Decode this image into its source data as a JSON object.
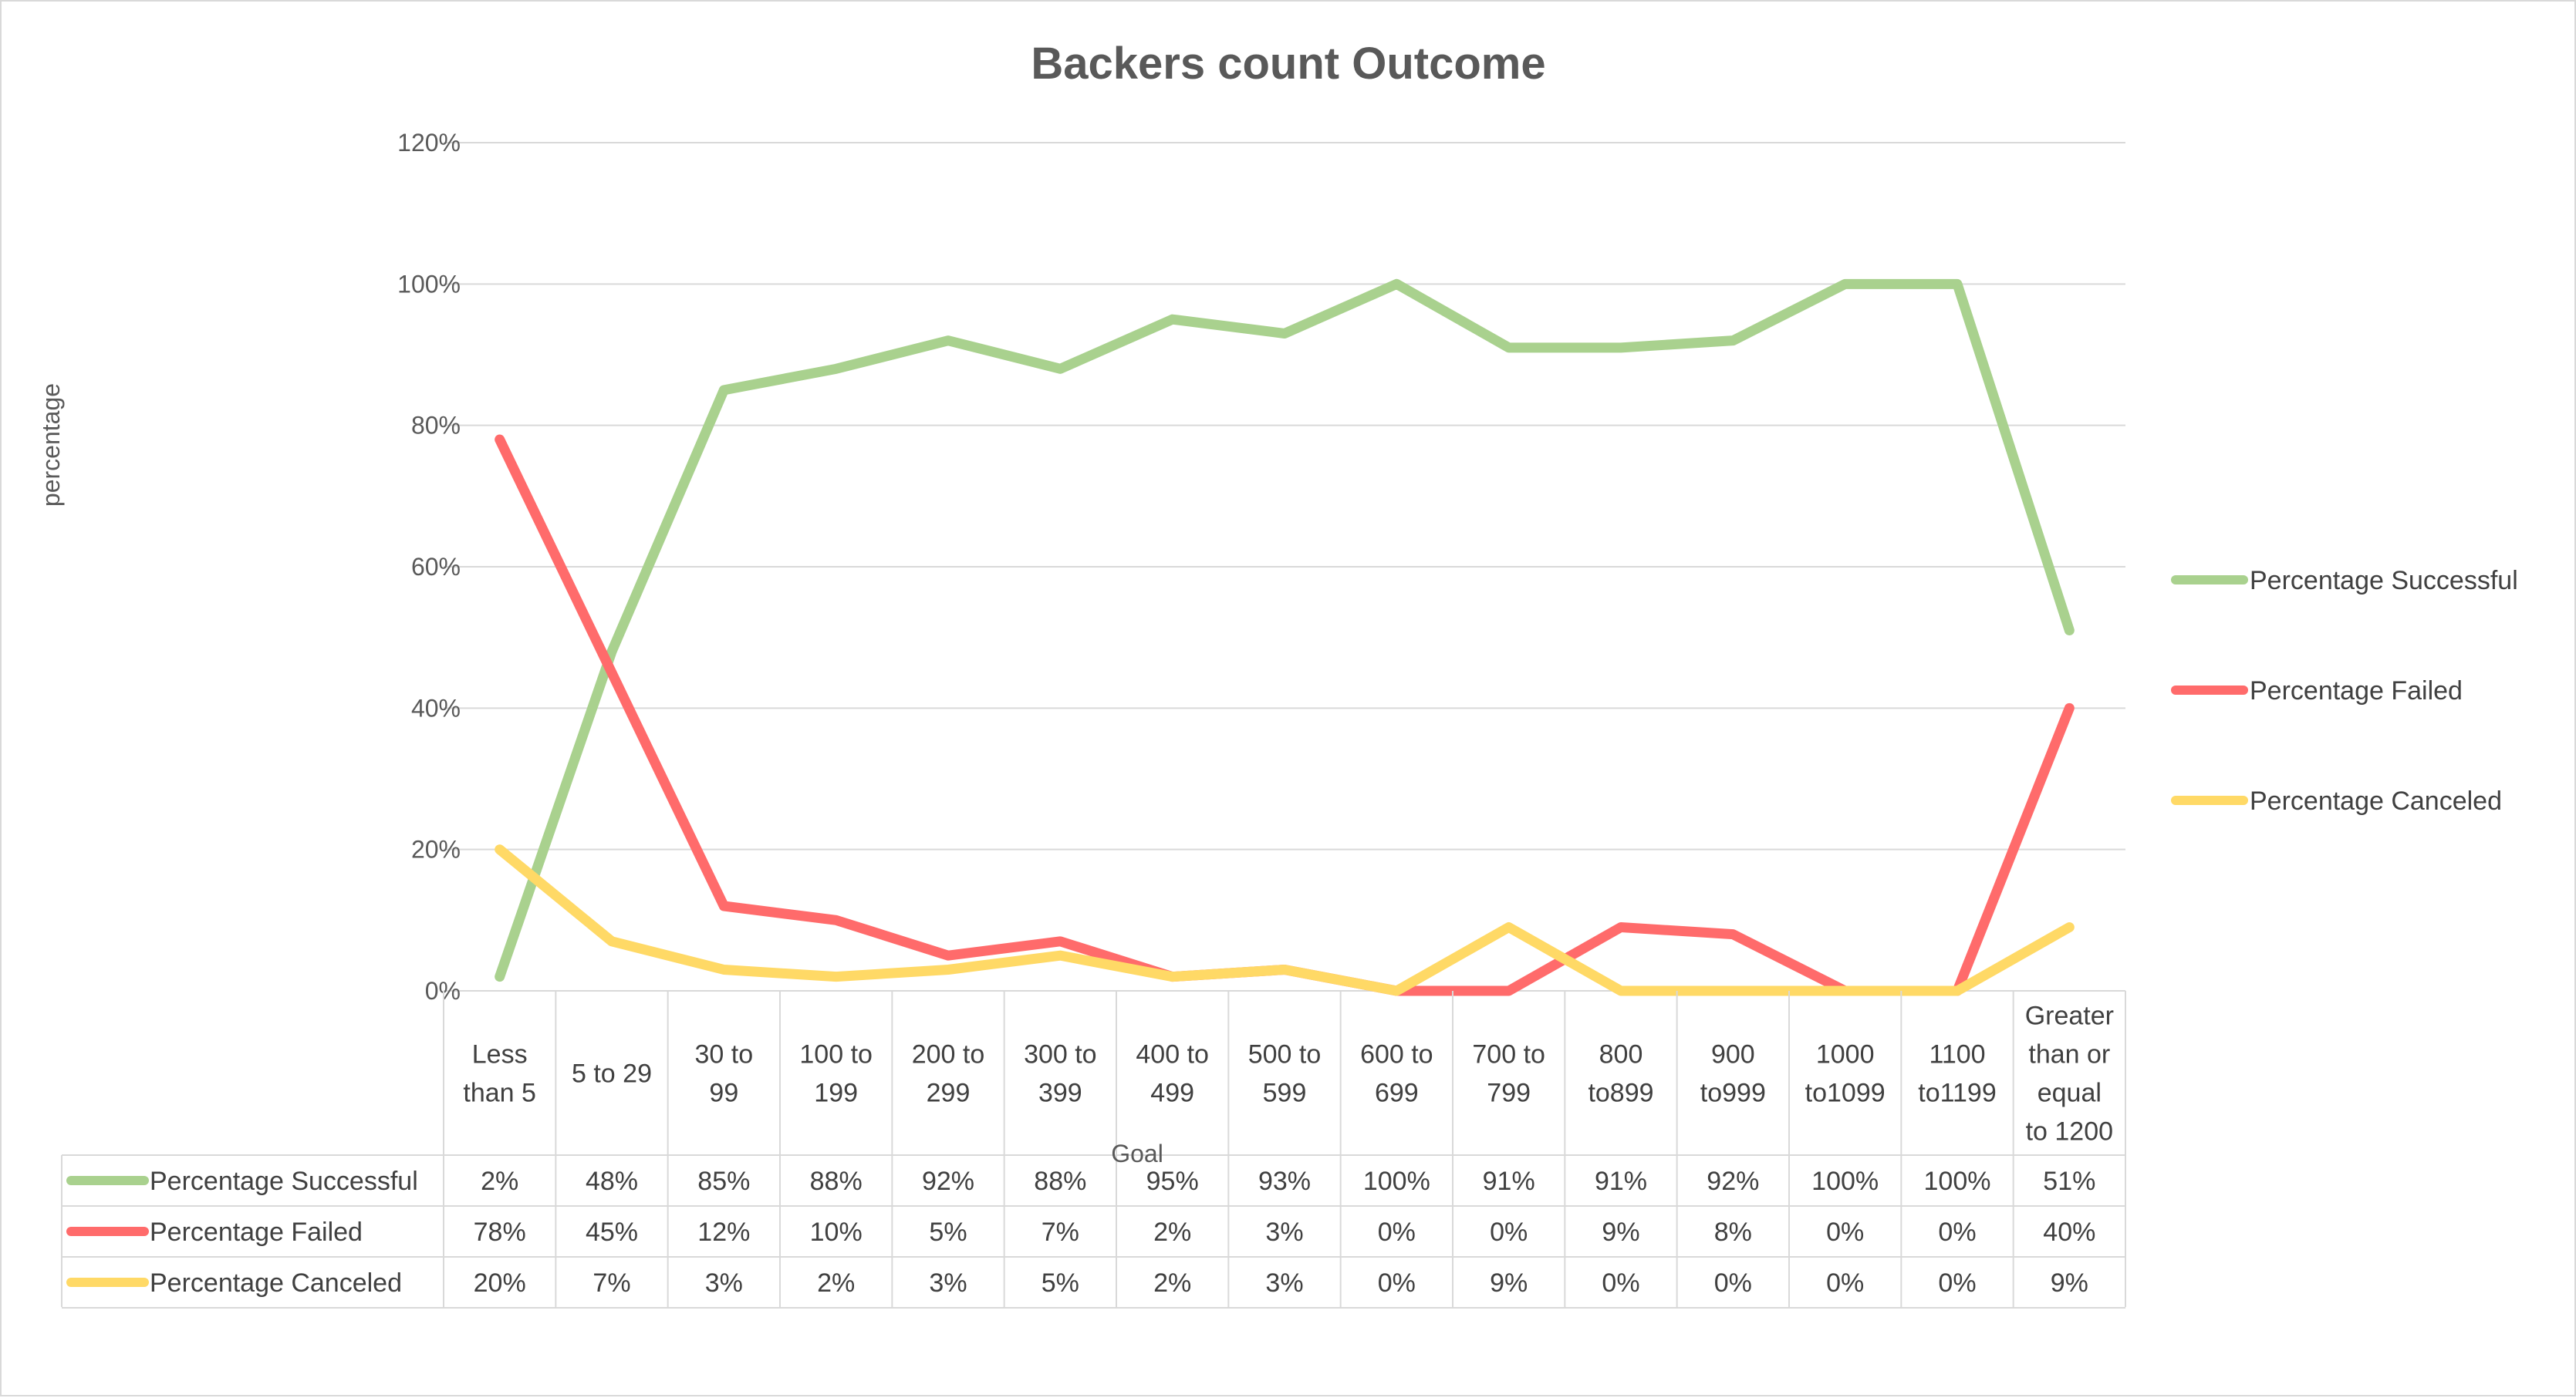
{
  "chart_data": {
    "type": "line",
    "title": "Backers count Outcome",
    "xlabel": "Goal",
    "ylabel": "percentage",
    "ylim": [
      0,
      1.2
    ],
    "y_ticks": [
      "0%",
      "20%",
      "40%",
      "60%",
      "80%",
      "100%",
      "120%"
    ],
    "grid": true,
    "legend_position": "right",
    "categories": [
      [
        "Less",
        "than 5"
      ],
      [
        "5 to 29"
      ],
      [
        "30 to",
        "99"
      ],
      [
        "100 to",
        "199"
      ],
      [
        "200 to",
        "299"
      ],
      [
        "300 to",
        "399"
      ],
      [
        "400 to",
        "499"
      ],
      [
        "500 to",
        "599"
      ],
      [
        "600 to",
        "699"
      ],
      [
        "700 to",
        "799"
      ],
      [
        "800",
        "to899"
      ],
      [
        "900",
        "to999"
      ],
      [
        "1000",
        "to1099"
      ],
      [
        "1100",
        "to1199"
      ],
      [
        "Greater",
        "than or",
        "equal",
        "to 1200"
      ]
    ],
    "series": [
      {
        "name": "Percentage Successful",
        "color": "#a9d18e",
        "values": [
          0.02,
          0.48,
          0.85,
          0.88,
          0.92,
          0.88,
          0.95,
          0.93,
          1.0,
          0.91,
          0.91,
          0.92,
          1.0,
          1.0,
          0.51
        ],
        "labels": [
          "2%",
          "48%",
          "85%",
          "88%",
          "92%",
          "88%",
          "95%",
          "93%",
          "100%",
          "91%",
          "91%",
          "92%",
          "100%",
          "100%",
          "51%"
        ]
      },
      {
        "name": "Percentage Failed",
        "color": "#ff6b6b",
        "values": [
          0.78,
          0.45,
          0.12,
          0.1,
          0.05,
          0.07,
          0.02,
          0.03,
          0.0,
          0.0,
          0.09,
          0.08,
          0.0,
          0.0,
          0.4
        ],
        "labels": [
          "78%",
          "45%",
          "12%",
          "10%",
          "5%",
          "7%",
          "2%",
          "3%",
          "0%",
          "0%",
          "9%",
          "8%",
          "0%",
          "0%",
          "40%"
        ]
      },
      {
        "name": "Percentage Canceled",
        "color": "#ffd966",
        "values": [
          0.2,
          0.07,
          0.03,
          0.02,
          0.03,
          0.05,
          0.02,
          0.03,
          0.0,
          0.09,
          0.0,
          0.0,
          0.0,
          0.0,
          0.09
        ],
        "labels": [
          "20%",
          "7%",
          "3%",
          "2%",
          "3%",
          "5%",
          "2%",
          "3%",
          "0%",
          "9%",
          "0%",
          "0%",
          "0%",
          "0%",
          "9%"
        ]
      }
    ]
  }
}
